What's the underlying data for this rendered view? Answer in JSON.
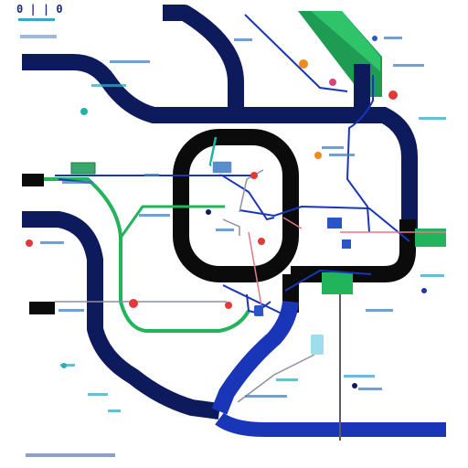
{
  "map": {
    "title": "0 | | 0",
    "legend_text": "",
    "colors": {
      "navy": "#0d1a5c",
      "blue": "#1936b8",
      "green": "#22b45a",
      "black": "#0b0b0b",
      "red": "#e23a3a",
      "orange": "#f08a1c",
      "teal": "#20b3a8",
      "pink": "#e79aa4",
      "light_blue": "#9fdcec"
    },
    "lines": [
      {
        "name": "navy-upper-line",
        "color": "navy"
      },
      {
        "name": "navy-left-line",
        "color": "navy"
      },
      {
        "name": "blue-bottom-line",
        "color": "blue"
      },
      {
        "name": "black-loop-line",
        "color": "black"
      },
      {
        "name": "green-line",
        "color": "green"
      }
    ],
    "station_labels": [],
    "central_label": "",
    "right_box_label": ""
  }
}
